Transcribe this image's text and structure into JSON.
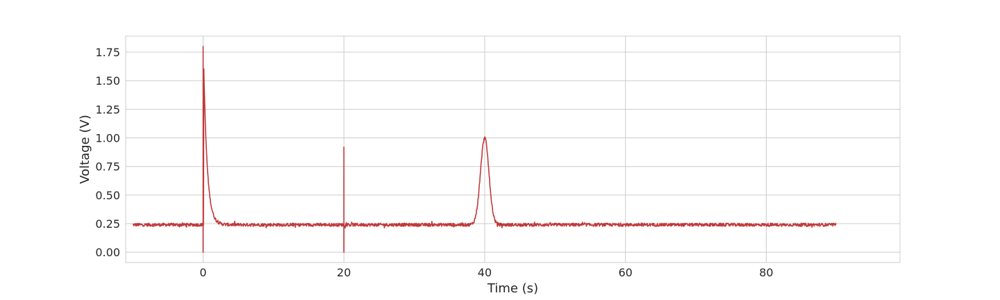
{
  "chart_data": {
    "type": "line",
    "title": "",
    "xlabel": "Time (s)",
    "ylabel": "Voltage (V)",
    "xlim": [
      -11,
      99
    ],
    "ylim": [
      -0.09,
      1.89
    ],
    "xticks": [
      0,
      20,
      40,
      60,
      80
    ],
    "yticks": [
      0.0,
      0.25,
      0.5,
      0.75,
      1.0,
      1.25,
      1.5,
      1.75
    ],
    "xtick_labels": [
      "0",
      "20",
      "40",
      "60",
      "80"
    ],
    "ytick_labels": [
      "0.00",
      "0.25",
      "0.50",
      "0.75",
      "1.00",
      "1.25",
      "1.50",
      "1.75"
    ],
    "grid": true,
    "line_color": "#c0393b",
    "grid_color": "#cccccc",
    "baseline": 0.24,
    "noise_amplitude": 0.02,
    "x_range": [
      -10,
      89.9
    ],
    "features": [
      {
        "kind": "spike",
        "x": 0.0,
        "min": 0.0,
        "peak": 1.8
      },
      {
        "kind": "exponential_decay",
        "x_start": 0.1,
        "start": 1.6,
        "time_constant": 0.5
      },
      {
        "kind": "spike",
        "x": 20.0,
        "min": 0.0,
        "peak": 0.92
      },
      {
        "kind": "gaussian_peak",
        "center": 40.0,
        "peak": 1.0,
        "width": 0.6
      }
    ]
  }
}
